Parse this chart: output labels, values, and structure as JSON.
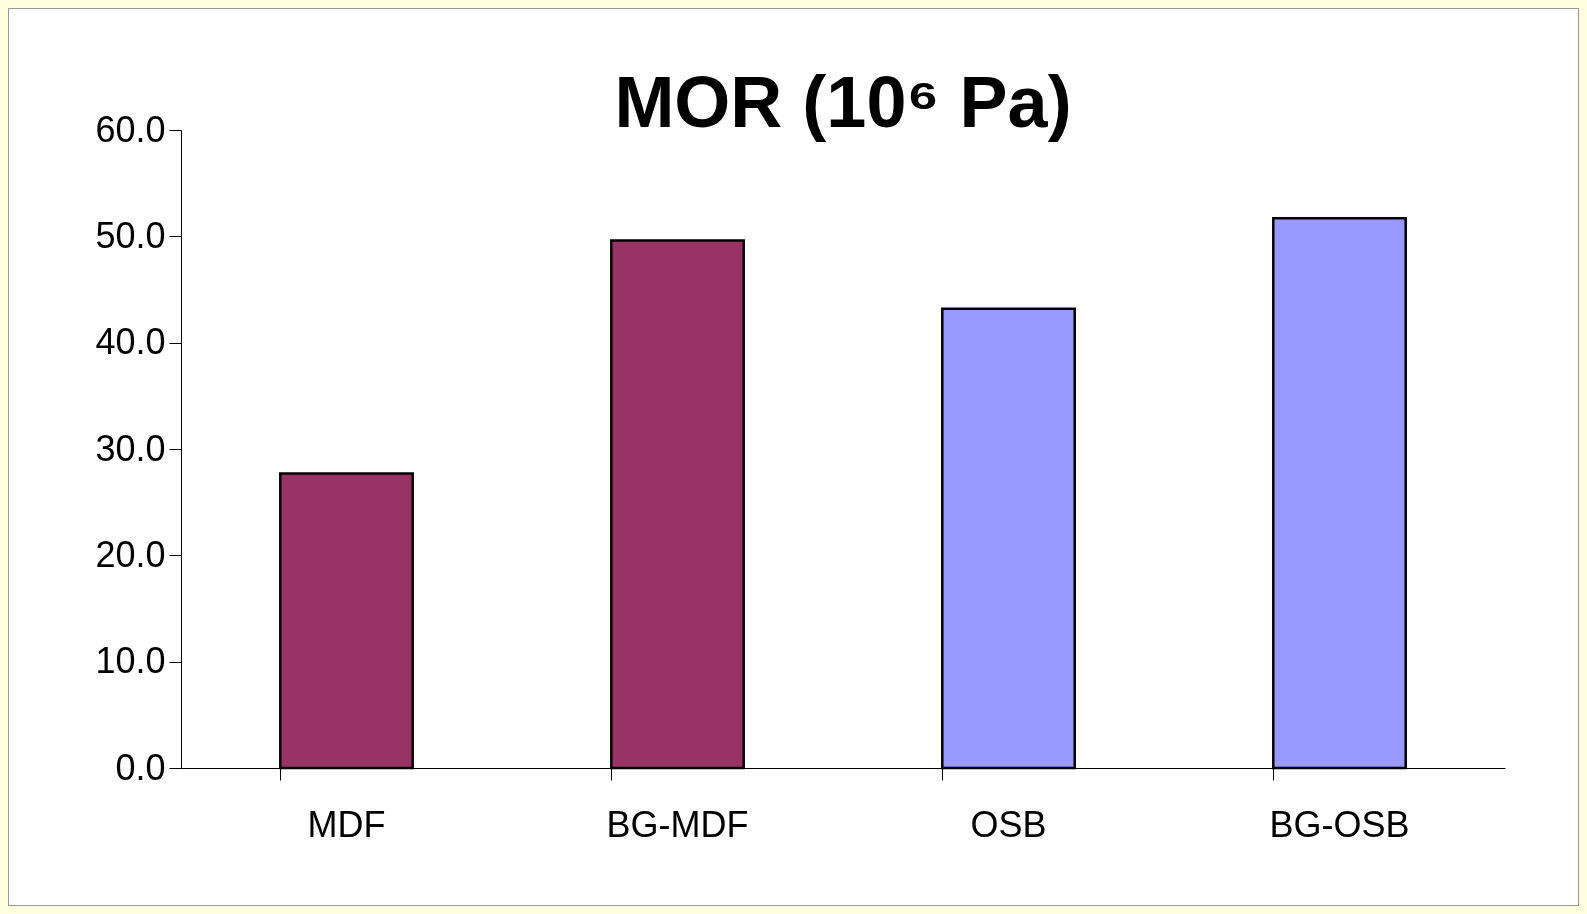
{
  "chart_data": {
    "type": "bar",
    "title": "MOR (10⁶ Pa)",
    "categories": [
      "MDF",
      "BG-MDF",
      "OSB",
      "BG-OSB"
    ],
    "values": [
      27.7,
      49.6,
      43.2,
      51.7
    ],
    "colors": [
      "#993366",
      "#993366",
      "#9999ff",
      "#9999ff"
    ],
    "ylim": [
      0,
      60
    ],
    "yticks": [
      {
        "value": 0,
        "label": "0.0"
      },
      {
        "value": 10,
        "label": "10.0"
      },
      {
        "value": 20,
        "label": "20.0"
      },
      {
        "value": 30,
        "label": "30.0"
      },
      {
        "value": 40,
        "label": "40.0"
      },
      {
        "value": 50,
        "label": "50.0"
      },
      {
        "value": 60,
        "label": "60.0"
      }
    ],
    "grid": false
  }
}
